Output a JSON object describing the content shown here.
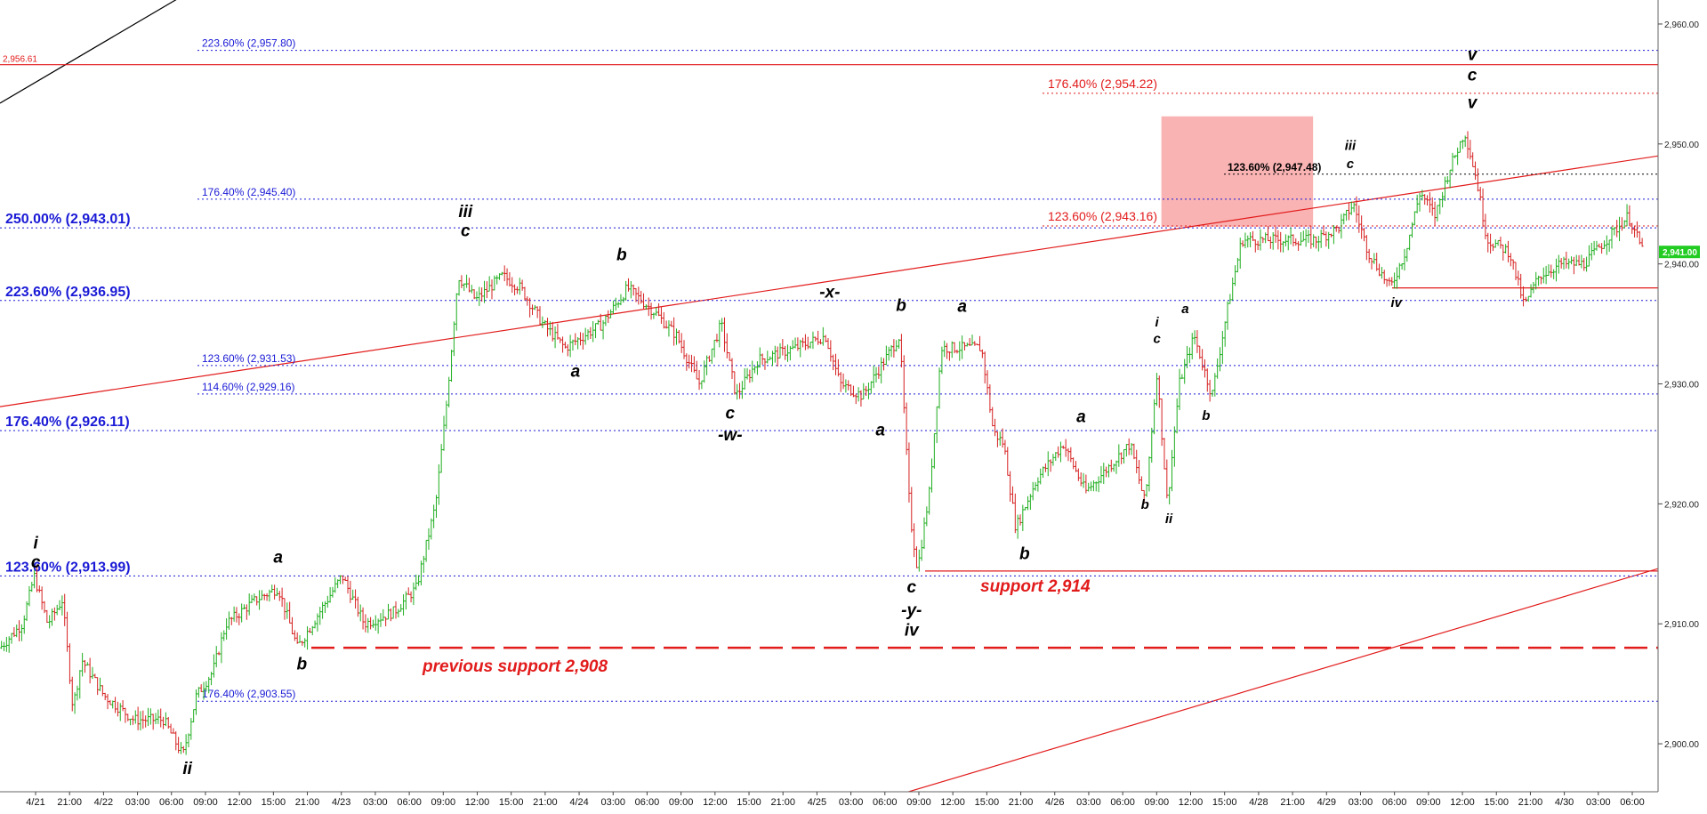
{
  "chart_data": {
    "type": "candlestick",
    "title": "",
    "xlabel": "",
    "ylabel": "",
    "ylim": [
      2896,
      2962
    ],
    "x_tick_labels": [
      "4/21",
      "21:00",
      "4/22",
      "03:00",
      "06:00",
      "09:00",
      "12:00",
      "15:00",
      "21:00",
      "4/23",
      "03:00",
      "06:00",
      "09:00",
      "12:00",
      "15:00",
      "21:00",
      "4/24",
      "03:00",
      "06:00",
      "09:00",
      "12:00",
      "15:00",
      "21:00",
      "4/25",
      "03:00",
      "06:00",
      "09:00",
      "12:00",
      "15:00",
      "21:00",
      "4/26",
      "03:00",
      "06:00",
      "09:00",
      "12:00",
      "15:00",
      "4/28",
      "21:00",
      "4/29",
      "03:00",
      "06:00",
      "09:00",
      "12:00",
      "15:00",
      "21:00",
      "4/30",
      "03:00",
      "06:00"
    ],
    "y_tick_labels": [
      "2,900.00",
      "2,910.00",
      "2,920.00",
      "2,930.00",
      "2,940.00",
      "2,950.00",
      "2,960.00"
    ],
    "y_ticks": [
      2900,
      2910,
      2920,
      2930,
      2940,
      2950,
      2960
    ],
    "last_price": {
      "value": 2941.0,
      "label": "2,941.00"
    },
    "price_path": [
      {
        "x": 0,
        "y": 2908
      },
      {
        "x": 1.5,
        "y": 2910
      },
      {
        "x": 2.3,
        "y": 2914
      },
      {
        "x": 3.2,
        "y": 2910
      },
      {
        "x": 4.2,
        "y": 2912
      },
      {
        "x": 4.9,
        "y": 2903
      },
      {
        "x": 5.5,
        "y": 2907
      },
      {
        "x": 7,
        "y": 2904
      },
      {
        "x": 9,
        "y": 2902
      },
      {
        "x": 11,
        "y": 2902
      },
      {
        "x": 12.3,
        "y": 2899
      },
      {
        "x": 13.2,
        "y": 2904
      },
      {
        "x": 14.3,
        "y": 2906
      },
      {
        "x": 15.2,
        "y": 2910
      },
      {
        "x": 17.2,
        "y": 2912
      },
      {
        "x": 18.7,
        "y": 2913
      },
      {
        "x": 20,
        "y": 2908
      },
      {
        "x": 21.5,
        "y": 2911
      },
      {
        "x": 23,
        "y": 2914
      },
      {
        "x": 24.5,
        "y": 2910
      },
      {
        "x": 26.5,
        "y": 2911
      },
      {
        "x": 28,
        "y": 2913
      },
      {
        "x": 29.3,
        "y": 2920
      },
      {
        "x": 30,
        "y": 2928
      },
      {
        "x": 30.8,
        "y": 2939
      },
      {
        "x": 32,
        "y": 2937
      },
      {
        "x": 33.8,
        "y": 2939
      },
      {
        "x": 35,
        "y": 2938
      },
      {
        "x": 36.5,
        "y": 2935
      },
      {
        "x": 38,
        "y": 2933
      },
      {
        "x": 40.5,
        "y": 2935
      },
      {
        "x": 42.2,
        "y": 2938
      },
      {
        "x": 44,
        "y": 2936
      },
      {
        "x": 45.5,
        "y": 2934
      },
      {
        "x": 47,
        "y": 2930
      },
      {
        "x": 48.5,
        "y": 2935
      },
      {
        "x": 49.5,
        "y": 2929
      },
      {
        "x": 51,
        "y": 2932
      },
      {
        "x": 53.5,
        "y": 2933
      },
      {
        "x": 55.5,
        "y": 2934
      },
      {
        "x": 56.5,
        "y": 2930
      },
      {
        "x": 58,
        "y": 2929
      },
      {
        "x": 59.5,
        "y": 2932
      },
      {
        "x": 60.5,
        "y": 2934
      },
      {
        "x": 61.2,
        "y": 2919
      },
      {
        "x": 61.7,
        "y": 2914.5
      },
      {
        "x": 62.5,
        "y": 2921
      },
      {
        "x": 63.3,
        "y": 2933
      },
      {
        "x": 64.5,
        "y": 2933
      },
      {
        "x": 66,
        "y": 2933
      },
      {
        "x": 66.8,
        "y": 2926
      },
      {
        "x": 67.5,
        "y": 2925
      },
      {
        "x": 68.3,
        "y": 2918
      },
      {
        "x": 69.7,
        "y": 2922
      },
      {
        "x": 71.5,
        "y": 2925
      },
      {
        "x": 73,
        "y": 2921
      },
      {
        "x": 74.5,
        "y": 2923
      },
      {
        "x": 76,
        "y": 2925
      },
      {
        "x": 77,
        "y": 2920
      },
      {
        "x": 77.8,
        "y": 2931
      },
      {
        "x": 78.5,
        "y": 2920
      },
      {
        "x": 79.3,
        "y": 2930
      },
      {
        "x": 80.3,
        "y": 2934
      },
      {
        "x": 81.5,
        "y": 2929
      },
      {
        "x": 82.5,
        "y": 2936
      },
      {
        "x": 83.5,
        "y": 2942
      },
      {
        "x": 86,
        "y": 2942
      },
      {
        "x": 88.5,
        "y": 2942
      },
      {
        "x": 90,
        "y": 2943
      },
      {
        "x": 91,
        "y": 2945
      },
      {
        "x": 92,
        "y": 2941
      },
      {
        "x": 93.5,
        "y": 2938
      },
      {
        "x": 94.5,
        "y": 2941
      },
      {
        "x": 95.5,
        "y": 2946
      },
      {
        "x": 96.5,
        "y": 2944
      },
      {
        "x": 97.5,
        "y": 2948
      },
      {
        "x": 98.5,
        "y": 2951
      },
      {
        "x": 99.3,
        "y": 2947
      },
      {
        "x": 100,
        "y": 2942
      },
      {
        "x": 101.5,
        "y": 2941
      },
      {
        "x": 102.5,
        "y": 2936.5
      },
      {
        "x": 103.5,
        "y": 2939
      },
      {
        "x": 105,
        "y": 2940
      },
      {
        "x": 106.5,
        "y": 2940
      },
      {
        "x": 108,
        "y": 2942
      },
      {
        "x": 109.5,
        "y": 2944
      },
      {
        "x": 110.5,
        "y": 2941
      }
    ],
    "horizontal_levels": [
      {
        "label": "223.60% (2,957.80)",
        "value": 2957.8,
        "style": "dotted-blue",
        "text_class": "small"
      },
      {
        "label": "2,956.61",
        "value": 2956.61,
        "style": "solid-red",
        "text_class": "red-tick"
      },
      {
        "label": "176.40% (2,954.22)",
        "value": 2954.22,
        "style": "dotted-red",
        "text_class": "red"
      },
      {
        "label": "123.60% (2,947.48)",
        "value": 2947.48,
        "style": "dotted-black",
        "text_class": "black"
      },
      {
        "label": "176.40% (2,945.40)",
        "value": 2945.4,
        "style": "dotted-blue",
        "text_class": "small"
      },
      {
        "label": "250.00% (2,943.01)",
        "value": 2943.01,
        "style": "dotted-blue",
        "text_class": "big"
      },
      {
        "label": "123.60% (2,943.16)",
        "value": 2943.16,
        "style": "dotted-red",
        "text_class": "red"
      },
      {
        "label": "223.60% (2,936.95)",
        "value": 2936.95,
        "style": "dotted-blue",
        "text_class": "big"
      },
      {
        "label": "123.60% (2,931.53)",
        "value": 2931.53,
        "style": "dotted-blue",
        "text_class": "small"
      },
      {
        "label": "114.60% (2,929.16)",
        "value": 2929.16,
        "style": "dotted-blue",
        "text_class": "small"
      },
      {
        "label": "176.40% (2,926.11)",
        "value": 2926.11,
        "style": "dotted-blue",
        "text_class": "big"
      },
      {
        "label": "123.60% (2,913.99)",
        "value": 2913.99,
        "style": "dotted-blue",
        "text_class": "big"
      },
      {
        "label": "176.40% (2,903.55)",
        "value": 2903.55,
        "style": "dotted-blue",
        "text_class": "small"
      }
    ],
    "supports": [
      {
        "label": "support 2,914",
        "value": 2914.4
      },
      {
        "label": "previous support 2,908",
        "value": 2908
      }
    ],
    "wave_labels": [
      {
        "text": "i",
        "x": 2.4,
        "y": 2916.3
      },
      {
        "text": "c",
        "x": 2.4,
        "y": 2914.7
      },
      {
        "text": "ii",
        "x": 12.6,
        "y": 2897.5
      },
      {
        "text": "a",
        "x": 18.7,
        "y": 2915.1
      },
      {
        "text": "b",
        "x": 20.3,
        "y": 2906.2
      },
      {
        "text": "iii",
        "x": 31.3,
        "y": 2943.9
      },
      {
        "text": "c",
        "x": 31.3,
        "y": 2942.3
      },
      {
        "text": "a",
        "x": 38.7,
        "y": 2930.6
      },
      {
        "text": "b",
        "x": 41.8,
        "y": 2940.3
      },
      {
        "text": "c",
        "x": 49.1,
        "y": 2927.1
      },
      {
        "text": "-w-",
        "x": 49.1,
        "y": 2925.3
      },
      {
        "text": "-x-",
        "x": 55.8,
        "y": 2937.2
      },
      {
        "text": "a",
        "x": 59.2,
        "y": 2925.7
      },
      {
        "text": "b",
        "x": 60.6,
        "y": 2936.1
      },
      {
        "text": "c",
        "x": 61.3,
        "y": 2912.6
      },
      {
        "text": "-y-",
        "x": 61.3,
        "y": 2910.7
      },
      {
        "text": "iv",
        "x": 61.3,
        "y": 2909.0
      },
      {
        "text": "a",
        "x": 64.7,
        "y": 2936.0
      },
      {
        "text": "b",
        "x": 68.9,
        "y": 2915.4
      },
      {
        "text": "a",
        "x": 72.7,
        "y": 2926.8
      },
      {
        "text": "b",
        "x": 77.0,
        "y": 2919.6
      },
      {
        "text": "i",
        "x": 77.8,
        "y": 2934.8
      },
      {
        "text": "c",
        "x": 77.8,
        "y": 2933.4
      },
      {
        "text": "ii",
        "x": 78.6,
        "y": 2918.4
      },
      {
        "text": "a",
        "x": 79.7,
        "y": 2935.9
      },
      {
        "text": "b",
        "x": 81.1,
        "y": 2927.0
      },
      {
        "text": "iii",
        "x": 90.8,
        "y": 2949.5
      },
      {
        "text": "c",
        "x": 90.8,
        "y": 2948.0
      },
      {
        "text": "iv",
        "x": 93.9,
        "y": 2936.4
      },
      {
        "text": "v",
        "x": 99.0,
        "y": 2957.0
      },
      {
        "text": "c",
        "x": 99.0,
        "y": 2955.3
      },
      {
        "text": "v",
        "x": 99.0,
        "y": 2953.0
      }
    ],
    "trend_lines": [
      {
        "name": "black-upper",
        "from": {
          "x": 0,
          "y": 2953.4
        },
        "to": {
          "x": 42,
          "y": 2984
        }
      },
      {
        "name": "red-channel-upper",
        "from": {
          "x": 0,
          "y": 2928.1
        },
        "to": {
          "x": 111.5,
          "y": 2949
        }
      },
      {
        "name": "red-channel-lower",
        "from": {
          "x": 47,
          "y": 2890.8
        },
        "to": {
          "x": 111.5,
          "y": 2914.6
        }
      }
    ],
    "target_box": {
      "x0": 78.1,
      "x1": 88.3,
      "y0": 2943.1,
      "y1": 2952.3
    },
    "grid": false,
    "legend": "none"
  }
}
